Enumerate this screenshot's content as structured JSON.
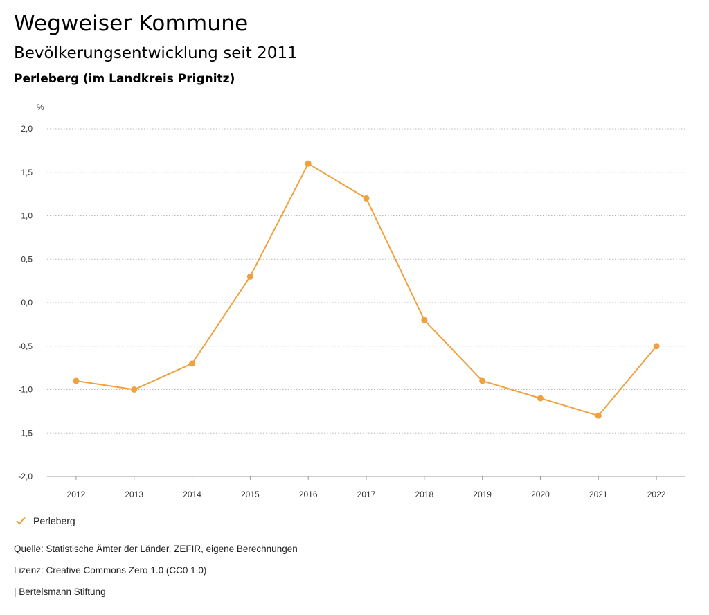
{
  "header": {
    "title": "Wegweiser Kommune",
    "subtitle": "Bevölkerungsentwicklung seit 2011",
    "region": "Perleberg (im Landkreis Prignitz)"
  },
  "chart_data": {
    "type": "line",
    "unit_label": "%",
    "categories": [
      "2012",
      "2013",
      "2014",
      "2015",
      "2016",
      "2017",
      "2018",
      "2019",
      "2020",
      "2021",
      "2022"
    ],
    "series": [
      {
        "name": "Perleberg",
        "color": "#f0a03c",
        "values": [
          -0.9,
          -1.0,
          -0.7,
          0.3,
          1.6,
          1.2,
          -0.2,
          -0.9,
          -1.1,
          -1.3,
          -0.5
        ]
      }
    ],
    "ylim": [
      -2.0,
      2.0
    ],
    "yticks": [
      "2,0",
      "1,5",
      "1,0",
      "0,5",
      "0,0",
      "-0,5",
      "-1,0",
      "-1,5",
      "-2,0"
    ],
    "ytick_values": [
      2.0,
      1.5,
      1.0,
      0.5,
      0.0,
      -0.5,
      -1.0,
      -1.5,
      -2.0
    ],
    "grid": true,
    "legend_position": "bottom-left"
  },
  "legend": {
    "label": "Perleberg",
    "icon": "check-icon"
  },
  "footer": {
    "source": "Quelle: Statistische Ämter der Länder, ZEFIR, eigene Berechnungen",
    "license": "Lizenz: Creative Commons Zero 1.0 (CC0 1.0)",
    "publisher": "| Bertelsmann Stiftung"
  }
}
